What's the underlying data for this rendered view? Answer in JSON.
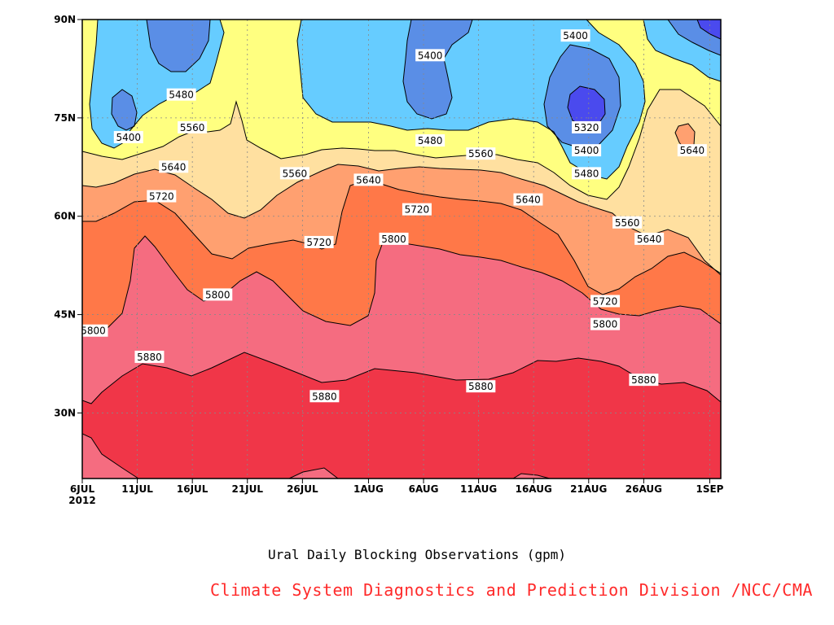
{
  "chart_data": {
    "type": "heatmap",
    "subtype": "filled contour (Hovmoller)",
    "title": "Ural Daily Blocking Observations (gpm)",
    "credit": "Climate System Diagnostics and Prediction Division /NCC/CMA",
    "x_ticks": [
      "6JUL",
      "11JUL",
      "16JUL",
      "21JUL",
      "26JUL",
      "1AUG",
      "6AUG",
      "11AUG",
      "16AUG",
      "21AUG",
      "26AUG",
      "1SEP"
    ],
    "x_year": "2012",
    "y_ticks": [
      "30N",
      "45N",
      "60N",
      "75N",
      "90N"
    ],
    "x_range_days": [
      0,
      58
    ],
    "y_range": [
      20,
      90
    ],
    "grid": true,
    "colors": {
      "below_5320": "#4a4aee",
      "5320_5400": "#5a8ee6",
      "5400_5480": "#66ccff",
      "5480_5560": "#ffff80",
      "5560_5640": "#ffe0a0",
      "5640_5720": "#ffa070",
      "5720_5800": "#ff7848",
      "5800_5880": "#f56c80",
      "above_5880": "#f03648"
    },
    "contour_labels": [
      {
        "value": "5400",
        "day": 4.2,
        "lat": 72
      },
      {
        "value": "5480",
        "day": 9.0,
        "lat": 78.5
      },
      {
        "value": "5560",
        "day": 10.0,
        "lat": 73.5
      },
      {
        "value": "5640",
        "day": 8.3,
        "lat": 67.5
      },
      {
        "value": "5720",
        "day": 7.2,
        "lat": 63
      },
      {
        "value": "5800",
        "day": 12.3,
        "lat": 48
      },
      {
        "value": "5800",
        "day": 1.0,
        "lat": 42.5
      },
      {
        "value": "5880",
        "day": 6.1,
        "lat": 38.5
      },
      {
        "value": "5560",
        "day": 19.3,
        "lat": 66.5
      },
      {
        "value": "5720",
        "day": 21.5,
        "lat": 56
      },
      {
        "value": "5640",
        "day": 26.0,
        "lat": 65.5
      },
      {
        "value": "5880",
        "day": 22.0,
        "lat": 32.5
      },
      {
        "value": "5800",
        "day": 28.3,
        "lat": 56.5
      },
      {
        "value": "5720",
        "day": 30.4,
        "lat": 61
      },
      {
        "value": "5400",
        "day": 31.6,
        "lat": 84.5
      },
      {
        "value": "5480",
        "day": 31.6,
        "lat": 71.5
      },
      {
        "value": "5560",
        "day": 36.2,
        "lat": 69.5
      },
      {
        "value": "5880",
        "day": 36.2,
        "lat": 34
      },
      {
        "value": "5640",
        "day": 40.5,
        "lat": 62.5
      },
      {
        "value": "5400",
        "day": 44.8,
        "lat": 87.5
      },
      {
        "value": "5320",
        "day": 45.8,
        "lat": 73.5
      },
      {
        "value": "5400",
        "day": 45.8,
        "lat": 70
      },
      {
        "value": "5480",
        "day": 45.8,
        "lat": 66.5
      },
      {
        "value": "5720",
        "day": 47.5,
        "lat": 47
      },
      {
        "value": "5800",
        "day": 47.5,
        "lat": 43.5
      },
      {
        "value": "5560",
        "day": 49.5,
        "lat": 59
      },
      {
        "value": "5640",
        "day": 51.5,
        "lat": 56.5
      },
      {
        "value": "5880",
        "day": 51.0,
        "lat": 35
      },
      {
        "value": "5640",
        "day": 55.4,
        "lat": 70
      }
    ]
  }
}
